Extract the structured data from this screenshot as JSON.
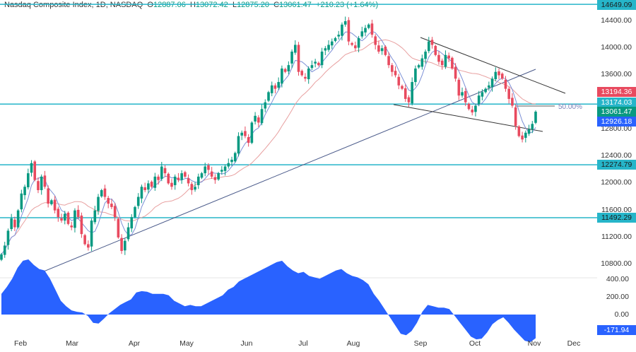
{
  "header": {
    "symbol": "Nasdaq Composite Index, 1D, NASDAQ",
    "open_label": "O",
    "open": "12887.06",
    "high_label": "H",
    "high": "13072.42",
    "low_label": "L",
    "low": "12875.20",
    "close_label": "C",
    "close": "13061.47",
    "change": "+210.23 (+1.64%)"
  },
  "price_axis": {
    "ticks": [
      "14400.00",
      "14000.00",
      "13600.00",
      "12800.00",
      "12400.00",
      "12000.00",
      "11600.00",
      "11200.00",
      "10800.00"
    ],
    "tags": [
      {
        "label": "14649.09",
        "color": "#26b5c9",
        "kind": "resistance"
      },
      {
        "label": "13194.36",
        "color": "#e84a5f",
        "kind": "ma-slow"
      },
      {
        "label": "13174.03",
        "color": "#26b5c9",
        "kind": "resistance"
      },
      {
        "label": "13061.47",
        "color": "#089981",
        "kind": "last-price"
      },
      {
        "label": "12926.18",
        "color": "#2962ff",
        "kind": "ma-fast"
      },
      {
        "label": "12274.79",
        "color": "#26b5c9",
        "kind": "support"
      },
      {
        "label": "11492.29",
        "color": "#26b5c9",
        "kind": "support"
      }
    ],
    "fib_label": "50.00%"
  },
  "oscillator_axis": {
    "ticks": [
      "400.00",
      "200.00",
      "0.00"
    ],
    "current": "-171.94",
    "current_color": "#2962ff"
  },
  "time_axis": [
    "Feb",
    "Mar",
    "Apr",
    "May",
    "Jun",
    "Jul",
    "Aug",
    "Sep",
    "Oct",
    "Nov",
    "Dec"
  ],
  "colors": {
    "up": "#089981",
    "down": "#e84a5f",
    "level": "#26b5c9",
    "trend": "#4a5a8a",
    "channel": "#333333",
    "ma_fast": "#7b8fd6",
    "ma_slow": "#e8a0a0",
    "osc": "#2962ff"
  },
  "chart_data": {
    "type": "candlestick",
    "title": "Nasdaq Composite Index, 1D, NASDAQ",
    "ylim": [
      10600,
      14700
    ],
    "horizontal_levels": [
      14649.09,
      13174.03,
      12274.79,
      11492.29
    ],
    "last": {
      "open": 12887.06,
      "high": 13072.42,
      "low": 12875.2,
      "close": 13061.47
    },
    "closes": [
      10950,
      11080,
      11300,
      11480,
      11350,
      11600,
      11850,
      11950,
      12150,
      12300,
      12050,
      11900,
      12100,
      11950,
      11700,
      11750,
      11600,
      11500,
      11450,
      11550,
      11400,
      11350,
      11600,
      11500,
      11250,
      11100,
      11050,
      11450,
      11600,
      11800,
      11900,
      11800,
      11700,
      11650,
      11500,
      11200,
      11000,
      11150,
      11350,
      11500,
      11650,
      11800,
      11950,
      11900,
      12000,
      11950,
      12100,
      12050,
      12250,
      12150,
      12000,
      11950,
      12100,
      12050,
      12150,
      12100,
      12000,
      11900,
      11950,
      12100,
      12150,
      12250,
      12200,
      12100,
      12050,
      12150,
      12200,
      12250,
      12300,
      12350,
      12450,
      12700,
      12750,
      12700,
      12600,
      12900,
      13000,
      12900,
      13100,
      13200,
      13350,
      13450,
      13400,
      13500,
      13700,
      13650,
      13750,
      13950,
      14050,
      13650,
      13600,
      13550,
      13700,
      13750,
      13800,
      13750,
      13950,
      14000,
      14050,
      14100,
      14150,
      14200,
      14350,
      14400,
      14100,
      14050,
      14000,
      14150,
      14250,
      14300,
      14350,
      14200,
      14050,
      13950,
      14000,
      13900,
      13750,
      13650,
      13600,
      13450,
      13400,
      13250,
      13200,
      13500,
      13700,
      13750,
      13850,
      13950,
      14100,
      14050,
      13900,
      13800,
      13750,
      13900,
      13850,
      13700,
      13550,
      13300,
      13350,
      13200,
      13100,
      13050,
      13150,
      13300,
      13350,
      13400,
      13450,
      13550,
      13650,
      13600,
      13550,
      13400,
      13250,
      13150,
      12850,
      12700,
      12650,
      12750,
      12800,
      12880,
      13061
    ],
    "oscillator": {
      "type": "area",
      "zero": 0,
      "ylim": [
        -250,
        420
      ],
      "last": -171.94,
      "values": [
        150,
        200,
        260,
        340,
        390,
        400,
        360,
        330,
        320,
        260,
        180,
        100,
        60,
        30,
        20,
        15,
        -10,
        -60,
        -65,
        -30,
        10,
        40,
        70,
        90,
        110,
        160,
        170,
        165,
        150,
        150,
        150,
        140,
        100,
        80,
        60,
        70,
        60,
        60,
        80,
        100,
        120,
        140,
        180,
        200,
        240,
        260,
        280,
        300,
        320,
        340,
        360,
        380,
        390,
        350,
        320,
        300,
        310,
        280,
        270,
        260,
        280,
        300,
        320,
        330,
        300,
        280,
        270,
        250,
        220,
        150,
        100,
        40,
        -20,
        -80,
        -140,
        -150,
        -120,
        -60,
        20,
        70,
        60,
        50,
        50,
        40,
        -10,
        -60,
        -110,
        -160,
        -180,
        -175,
        -130,
        -70,
        -40,
        -20,
        -60,
        -110,
        -150,
        -190,
        -200,
        -171.94
      ]
    }
  }
}
